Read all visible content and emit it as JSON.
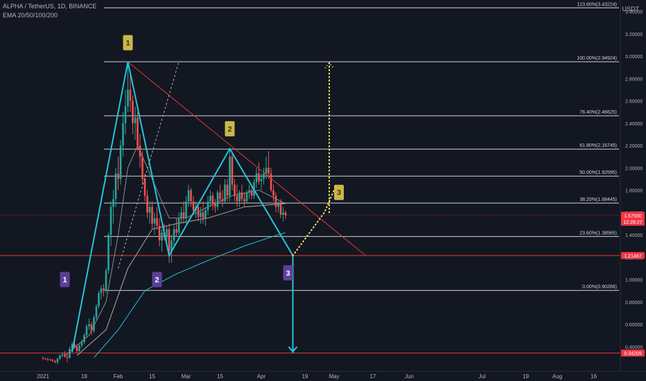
{
  "header": {
    "symbol_line": "ALPHA / TetherUS, 1D, BINANCE",
    "indicator_line": "EMA 20/50/100/200"
  },
  "price_axis": {
    "unit": "USDT",
    "ticks": [
      "3.40000",
      "3.20000",
      "3.00000",
      "2.80000",
      "2.60000",
      "2.40000",
      "2.20000",
      "2.00000",
      "1.80000",
      "1.60000",
      "1.40000",
      "1.20000",
      "1.00000",
      "0.80000",
      "0.60000",
      "0.40000"
    ],
    "badges": [
      {
        "label": "1.57500",
        "sub": "12:28:27",
        "value": 1.575,
        "color": "#f23645"
      },
      {
        "label": "1.21467",
        "value": 1.21467,
        "color": "#f23645"
      },
      {
        "label": "0.34209",
        "value": 0.34209,
        "color": "#f23645"
      }
    ]
  },
  "time_axis": {
    "ticks": [
      {
        "label": "2021",
        "date": "2021-01-01"
      },
      {
        "label": "18",
        "date": "2021-01-18"
      },
      {
        "label": "Feb",
        "date": "2021-02-01"
      },
      {
        "label": "15",
        "date": "2021-02-15"
      },
      {
        "label": "Mar",
        "date": "2021-03-01"
      },
      {
        "label": "15",
        "date": "2021-03-15"
      },
      {
        "label": "Apr",
        "date": "2021-04-01"
      },
      {
        "label": "19",
        "date": "2021-04-19"
      },
      {
        "label": "May",
        "date": "2021-05-01"
      },
      {
        "label": "17",
        "date": "2021-05-17"
      },
      {
        "label": "Jun",
        "date": "2021-06-01"
      },
      {
        "label": "Jul",
        "date": "2021-07-01"
      },
      {
        "label": "19",
        "date": "2021-07-19"
      },
      {
        "label": "Aug",
        "date": "2021-08-01"
      },
      {
        "label": "16",
        "date": "2021-08-16"
      }
    ]
  },
  "chart_data": {
    "type": "candlestick",
    "title": "ALPHA / TetherUS, 1D, BINANCE",
    "ylabel": "USDT",
    "yscale": "linear",
    "ylim": [
      0.3,
      3.48
    ],
    "grid": false,
    "fibonacci": [
      {
        "label": "123.60%(3.43224)",
        "value": 3.43224
      },
      {
        "label": "100.00%(2.94924)",
        "value": 2.94924
      },
      {
        "label": "76.40%(2.46625)",
        "value": 2.46625
      },
      {
        "label": "61.80%(2.16745)",
        "value": 2.16745
      },
      {
        "label": "50.00%(1.92595)",
        "value": 1.92595
      },
      {
        "label": "38.20%(1.68445)",
        "value": 1.68445
      },
      {
        "label": "23.60%(1.38565)",
        "value": 1.38565
      },
      {
        "label": "0.00%(0.90266)",
        "value": 0.90266
      }
    ],
    "horizontal_levels": [
      1.21467,
      0.34209
    ],
    "colors": {
      "up": "#26a69a",
      "down": "#ef5350",
      "pattern": "#26c6da",
      "trendline": "#e53935",
      "marker_gold": "#c9b84a",
      "marker_purple": "#5b3f9a"
    },
    "candles": [
      [
        "2021-01-01",
        0.3,
        0.31,
        0.28,
        0.295
      ],
      [
        "2021-01-02",
        0.295,
        0.3,
        0.28,
        0.29
      ],
      [
        "2021-01-03",
        0.29,
        0.3,
        0.27,
        0.285
      ],
      [
        "2021-01-04",
        0.285,
        0.29,
        0.27,
        0.28
      ],
      [
        "2021-01-05",
        0.28,
        0.29,
        0.26,
        0.27
      ],
      [
        "2021-01-06",
        0.27,
        0.28,
        0.25,
        0.26
      ],
      [
        "2021-01-07",
        0.26,
        0.3,
        0.24,
        0.29
      ],
      [
        "2021-01-08",
        0.29,
        0.33,
        0.28,
        0.32
      ],
      [
        "2021-01-09",
        0.32,
        0.35,
        0.3,
        0.33
      ],
      [
        "2021-01-10",
        0.33,
        0.36,
        0.3,
        0.31
      ],
      [
        "2021-01-11",
        0.31,
        0.34,
        0.26,
        0.3
      ],
      [
        "2021-01-12",
        0.3,
        0.4,
        0.29,
        0.38
      ],
      [
        "2021-01-13",
        0.38,
        0.44,
        0.35,
        0.42
      ],
      [
        "2021-01-14",
        0.42,
        0.48,
        0.38,
        0.4
      ],
      [
        "2021-01-15",
        0.4,
        0.42,
        0.34,
        0.36
      ],
      [
        "2021-01-16",
        0.36,
        0.43,
        0.35,
        0.41
      ],
      [
        "2021-01-17",
        0.41,
        0.46,
        0.39,
        0.44
      ],
      [
        "2021-01-18",
        0.44,
        0.52,
        0.42,
        0.5
      ],
      [
        "2021-01-19",
        0.5,
        0.6,
        0.48,
        0.58
      ],
      [
        "2021-01-20",
        0.58,
        0.65,
        0.55,
        0.6
      ],
      [
        "2021-01-21",
        0.6,
        0.62,
        0.5,
        0.54
      ],
      [
        "2021-01-22",
        0.54,
        0.68,
        0.52,
        0.66
      ],
      [
        "2021-01-23",
        0.66,
        0.78,
        0.64,
        0.76
      ],
      [
        "2021-01-24",
        0.76,
        0.9,
        0.74,
        0.88
      ],
      [
        "2021-01-25",
        0.88,
        0.95,
        0.82,
        0.92
      ],
      [
        "2021-01-26",
        0.92,
        0.96,
        0.85,
        0.9
      ],
      [
        "2021-01-27",
        0.9,
        1.1,
        0.88,
        1.08
      ],
      [
        "2021-01-28",
        1.08,
        1.42,
        1.05,
        1.4
      ],
      [
        "2021-01-29",
        1.4,
        1.7,
        1.3,
        1.65
      ],
      [
        "2021-01-30",
        1.65,
        1.8,
        1.5,
        1.72
      ],
      [
        "2021-01-31",
        1.72,
        2.0,
        1.65,
        1.95
      ],
      [
        "2021-02-01",
        1.95,
        2.1,
        1.8,
        1.9
      ],
      [
        "2021-02-02",
        1.9,
        2.25,
        1.85,
        2.2
      ],
      [
        "2021-02-03",
        2.2,
        2.5,
        2.1,
        2.4
      ],
      [
        "2021-02-04",
        2.4,
        2.7,
        2.3,
        2.55
      ],
      [
        "2021-02-05",
        2.55,
        2.95,
        2.5,
        2.7
      ],
      [
        "2021-02-06",
        2.7,
        2.85,
        2.5,
        2.6
      ],
      [
        "2021-02-07",
        2.6,
        2.65,
        2.3,
        2.4
      ],
      [
        "2021-02-08",
        2.4,
        2.55,
        2.25,
        2.45
      ],
      [
        "2021-02-09",
        2.45,
        2.5,
        2.15,
        2.2
      ],
      [
        "2021-02-10",
        2.2,
        2.3,
        2.0,
        2.1
      ],
      [
        "2021-02-11",
        2.1,
        2.15,
        1.85,
        1.9
      ],
      [
        "2021-02-12",
        1.9,
        1.95,
        1.7,
        1.75
      ],
      [
        "2021-02-13",
        1.75,
        1.8,
        1.55,
        1.6
      ],
      [
        "2021-02-14",
        1.6,
        1.7,
        1.5,
        1.65
      ],
      [
        "2021-02-15",
        1.65,
        1.7,
        1.45,
        1.5
      ],
      [
        "2021-02-16",
        1.5,
        1.6,
        1.4,
        1.55
      ],
      [
        "2021-02-17",
        1.55,
        1.65,
        1.45,
        1.48
      ],
      [
        "2021-02-18",
        1.48,
        1.55,
        1.3,
        1.35
      ],
      [
        "2021-02-19",
        1.35,
        1.45,
        1.25,
        1.42
      ],
      [
        "2021-02-20",
        1.42,
        1.5,
        1.35,
        1.38
      ],
      [
        "2021-02-21",
        1.38,
        1.48,
        1.3,
        1.45
      ],
      [
        "2021-02-22",
        1.45,
        1.5,
        1.15,
        1.25
      ],
      [
        "2021-02-23",
        1.25,
        1.4,
        1.15,
        1.35
      ],
      [
        "2021-02-24",
        1.35,
        1.5,
        1.3,
        1.45
      ],
      [
        "2021-02-25",
        1.45,
        1.55,
        1.38,
        1.42
      ],
      [
        "2021-02-26",
        1.42,
        1.6,
        1.4,
        1.55
      ],
      [
        "2021-02-27",
        1.55,
        1.65,
        1.5,
        1.6
      ],
      [
        "2021-02-28",
        1.6,
        1.7,
        1.5,
        1.55
      ],
      [
        "2021-03-01",
        1.55,
        1.75,
        1.5,
        1.7
      ],
      [
        "2021-03-02",
        1.7,
        1.85,
        1.65,
        1.8
      ],
      [
        "2021-03-03",
        1.8,
        1.82,
        1.65,
        1.7
      ],
      [
        "2021-03-04",
        1.7,
        1.75,
        1.58,
        1.62
      ],
      [
        "2021-03-05",
        1.62,
        1.7,
        1.55,
        1.65
      ],
      [
        "2021-03-06",
        1.65,
        1.68,
        1.52,
        1.56
      ],
      [
        "2021-03-07",
        1.56,
        1.65,
        1.5,
        1.6
      ],
      [
        "2021-03-08",
        1.6,
        1.7,
        1.5,
        1.55
      ],
      [
        "2021-03-09",
        1.55,
        1.65,
        1.48,
        1.62
      ],
      [
        "2021-03-10",
        1.62,
        1.75,
        1.58,
        1.7
      ],
      [
        "2021-03-11",
        1.7,
        1.8,
        1.65,
        1.75
      ],
      [
        "2021-03-12",
        1.75,
        1.78,
        1.62,
        1.68
      ],
      [
        "2021-03-13",
        1.68,
        1.72,
        1.6,
        1.65
      ],
      [
        "2021-03-14",
        1.65,
        1.8,
        1.62,
        1.78
      ],
      [
        "2021-03-15",
        1.78,
        1.85,
        1.7,
        1.72
      ],
      [
        "2021-03-16",
        1.72,
        1.8,
        1.65,
        1.7
      ],
      [
        "2021-03-17",
        1.7,
        1.9,
        1.68,
        1.85
      ],
      [
        "2021-03-18",
        1.85,
        1.9,
        1.7,
        1.75
      ],
      [
        "2021-03-19",
        1.75,
        2.17,
        1.7,
        2.1
      ],
      [
        "2021-03-20",
        2.1,
        2.15,
        1.8,
        1.85
      ],
      [
        "2021-03-21",
        1.85,
        1.9,
        1.7,
        1.75
      ],
      [
        "2021-03-22",
        1.75,
        1.85,
        1.65,
        1.7
      ],
      [
        "2021-03-23",
        1.7,
        1.8,
        1.65,
        1.78
      ],
      [
        "2021-03-24",
        1.78,
        1.85,
        1.7,
        1.72
      ],
      [
        "2021-03-25",
        1.72,
        1.78,
        1.65,
        1.7
      ],
      [
        "2021-03-26",
        1.7,
        1.8,
        1.68,
        1.78
      ],
      [
        "2021-03-27",
        1.78,
        1.85,
        1.72,
        1.8
      ],
      [
        "2021-03-28",
        1.8,
        1.82,
        1.72,
        1.75
      ],
      [
        "2021-03-29",
        1.75,
        1.9,
        1.72,
        1.87
      ],
      [
        "2021-03-30",
        1.87,
        2.0,
        1.82,
        1.95
      ],
      [
        "2021-03-31",
        1.95,
        2.05,
        1.85,
        1.88
      ],
      [
        "2021-04-01",
        1.88,
        1.95,
        1.8,
        1.9
      ],
      [
        "2021-04-02",
        1.9,
        2.0,
        1.85,
        1.95
      ],
      [
        "2021-04-03",
        1.95,
        2.1,
        1.9,
        2.0
      ],
      [
        "2021-04-04",
        2.0,
        2.15,
        1.9,
        1.95
      ],
      [
        "2021-04-05",
        1.95,
        2.0,
        1.78,
        1.8
      ],
      [
        "2021-04-06",
        1.8,
        1.85,
        1.7,
        1.75
      ],
      [
        "2021-04-07",
        1.75,
        1.78,
        1.6,
        1.65
      ],
      [
        "2021-04-08",
        1.65,
        1.7,
        1.6,
        1.68
      ],
      [
        "2021-04-09",
        1.68,
        1.72,
        1.55,
        1.58
      ],
      [
        "2021-04-10",
        1.58,
        1.65,
        1.52,
        1.6
      ],
      [
        "2021-04-11",
        1.6,
        1.62,
        1.54,
        1.575
      ]
    ],
    "ema_lines": {
      "fast": [
        [
          "2021-01-10",
          0.32
        ],
        [
          "2021-01-20",
          0.5
        ],
        [
          "2021-01-27",
          0.8
        ],
        [
          "2021-02-01",
          1.4
        ],
        [
          "2021-02-05",
          2.0
        ],
        [
          "2021-02-09",
          2.2
        ],
        [
          "2021-02-15",
          1.9
        ],
        [
          "2021-02-22",
          1.55
        ],
        [
          "2021-03-01",
          1.55
        ],
        [
          "2021-03-10",
          1.65
        ],
        [
          "2021-03-20",
          1.75
        ],
        [
          "2021-03-31",
          1.8
        ],
        [
          "2021-04-11",
          1.68
        ]
      ],
      "mid": [
        [
          "2021-01-15",
          0.32
        ],
        [
          "2021-01-27",
          0.55
        ],
        [
          "2021-02-05",
          1.1
        ],
        [
          "2021-02-15",
          1.45
        ],
        [
          "2021-02-25",
          1.5
        ],
        [
          "2021-03-10",
          1.55
        ],
        [
          "2021-03-25",
          1.65
        ],
        [
          "2021-04-11",
          1.68
        ]
      ],
      "slow": [
        [
          "2021-01-22",
          0.3
        ],
        [
          "2021-02-01",
          0.55
        ],
        [
          "2021-02-12",
          0.9
        ],
        [
          "2021-02-25",
          1.05
        ],
        [
          "2021-03-10",
          1.17
        ],
        [
          "2021-03-25",
          1.3
        ],
        [
          "2021-04-05",
          1.38
        ],
        [
          "2021-04-11",
          1.42
        ]
      ]
    },
    "pattern": {
      "zigzag": [
        [
          "2021-01-13",
          0.35
        ],
        [
          "2021-02-05",
          2.94924
        ],
        [
          "2021-02-22",
          1.21467
        ],
        [
          "2021-03-19",
          2.17
        ],
        [
          "2021-04-14",
          1.21467
        ]
      ],
      "projection_down": [
        [
          "2021-04-14",
          1.21467
        ],
        [
          "2021-04-14",
          0.34209
        ]
      ],
      "projection_dotted": [
        [
          "2021-04-14",
          1.21467
        ],
        [
          "2021-04-27",
          1.6
        ],
        [
          "2021-05-01",
          1.8
        ]
      ],
      "projection_up": [
        [
          "2021-04-29",
          1.6
        ],
        [
          "2021-04-29",
          2.94924
        ]
      ],
      "trendline": [
        [
          "2021-02-05",
          2.94924
        ],
        [
          "2021-05-14",
          1.21467
        ]
      ],
      "dashed_line": [
        [
          "2021-02-01",
          1.1
        ],
        [
          "2021-02-26",
          2.94924
        ]
      ],
      "markers": [
        {
          "label": "1",
          "date": "2021-02-05",
          "value": 3.12,
          "style": "gold"
        },
        {
          "label": "2",
          "date": "2021-03-19",
          "value": 2.35,
          "style": "gold"
        },
        {
          "label": "3",
          "date": "2021-05-03",
          "value": 1.78,
          "style": "gold"
        },
        {
          "label": "1",
          "date": "2021-01-10",
          "value": 1.0,
          "style": "purple"
        },
        {
          "label": "2",
          "date": "2021-02-17",
          "value": 1.0,
          "style": "purple"
        },
        {
          "label": "3",
          "date": "2021-04-12",
          "value": 1.06,
          "style": "purple"
        }
      ]
    }
  }
}
